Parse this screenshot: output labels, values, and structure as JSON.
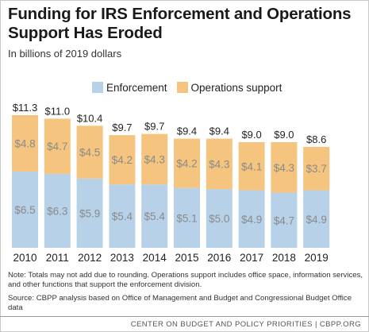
{
  "title": "Funding for IRS Enforcement and Operations Support Has Eroded",
  "subtitle": "In billions of 2019 dollars",
  "note": "Note: Totals may not add due to rounding. Operations support includes office space, information services, and other functions that support the enforcement division.",
  "source": "Source: CBPP analysis based on Office of Management and Budget and Congressional Budget Office data",
  "footer": "CENTER ON BUDGET AND POLICY PRIORITIES | CBPP.ORG",
  "colors": {
    "enforcement": "#b6d1e8",
    "operations": "#f5c57f",
    "label": "#8a8a8a",
    "text": "#222222"
  },
  "chart_data": {
    "type": "bar",
    "stacked": true,
    "categories": [
      "2010",
      "2011",
      "2012",
      "2013",
      "2014",
      "2015",
      "2016",
      "2017",
      "2018",
      "2019"
    ],
    "series": [
      {
        "name": "Enforcement",
        "values": [
          6.5,
          6.3,
          5.9,
          5.4,
          5.4,
          5.1,
          5.0,
          4.9,
          4.7,
          4.9
        ],
        "labels": [
          "$6.5",
          "$6.3",
          "$5.9",
          "$5.4",
          "$5.4",
          "$5.1",
          "$5.0",
          "$4.9",
          "$4.7",
          "$4.9"
        ]
      },
      {
        "name": "Operations support",
        "values": [
          4.8,
          4.7,
          4.5,
          4.2,
          4.3,
          4.2,
          4.3,
          4.1,
          4.3,
          3.7
        ],
        "labels": [
          "$4.8",
          "$4.7",
          "$4.5",
          "$4.2",
          "$4.3",
          "$4.2",
          "$4.3",
          "$4.1",
          "$4.3",
          "$3.7"
        ]
      }
    ],
    "totals": [
      11.3,
      11.0,
      10.4,
      9.7,
      9.7,
      9.4,
      9.4,
      9.0,
      9.0,
      8.6
    ],
    "total_labels": [
      "$11.3",
      "$11.0",
      "$10.4",
      "$9.7",
      "$9.7",
      "$9.4",
      "$9.4",
      "$9.0",
      "$9.0",
      "$8.6"
    ],
    "ylim": [
      0,
      11.3
    ],
    "grid": false,
    "legend_position": "top"
  }
}
